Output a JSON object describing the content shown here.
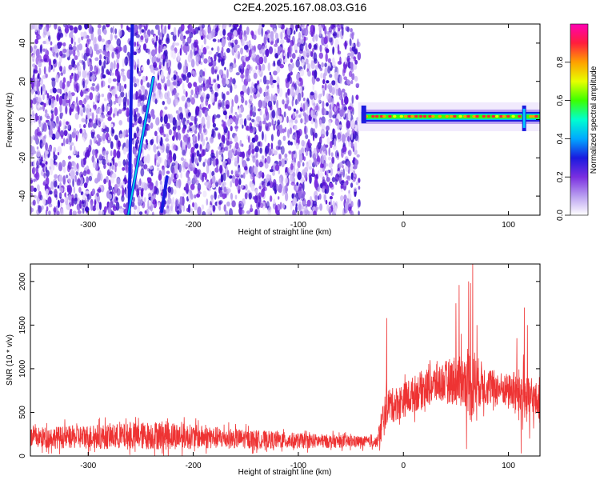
{
  "title": "C2E4.2025.167.08.03.G16",
  "chart_data": [
    {
      "type": "heatmap",
      "xlabel": "Height of straight line (km)",
      "ylabel": "Frequency (Hz)",
      "xlim": [
        -355,
        130
      ],
      "ylim": [
        -50,
        50
      ],
      "xticks": [
        -300,
        -200,
        -100,
        0,
        100
      ],
      "yticks": [
        -40,
        -20,
        0,
        20,
        40
      ],
      "colorbar": {
        "label": "Normalized spectral amplitude",
        "range": [
          0.0,
          1.0
        ],
        "ticks": [
          0.0,
          0.2,
          0.4,
          0.6,
          0.8
        ],
        "colormap": [
          "#ffffff",
          "#b99ef0",
          "#7a2fe0",
          "#1a1adf",
          "#00a8ff",
          "#00ffd0",
          "#3cff00",
          "#e7ff00",
          "#ffa000",
          "#ff1e3c",
          "#ff00b4"
        ]
      },
      "features": [
        {
          "kind": "noise_region",
          "x_range": [
            -355,
            -42
          ],
          "color": "#7a2fe0"
        },
        {
          "kind": "streak",
          "x": [
            -261,
            -258
          ],
          "y": [
            -50,
            50
          ],
          "color": "#1a1adf"
        },
        {
          "kind": "streak",
          "x": [
            -262,
            -238
          ],
          "y": [
            -50,
            22
          ],
          "color": "#00d2e6"
        },
        {
          "kind": "streak",
          "x": [
            -230,
            -225
          ],
          "y": [
            -48,
            -30
          ],
          "color": "#1a1adf"
        },
        {
          "kind": "signal_band",
          "x_range": [
            -40,
            130
          ],
          "y_center": 1.5,
          "peak_color": "#ff1e3c"
        }
      ]
    },
    {
      "type": "line",
      "xlabel": "Height of straight line (km)",
      "ylabel": "SNR (10 * v/v)",
      "xlim": [
        -355,
        130
      ],
      "ylim": [
        0,
        2200
      ],
      "xticks": [
        -300,
        -200,
        -100,
        0,
        100
      ],
      "yticks": [
        0,
        500,
        1000,
        1500,
        2000
      ],
      "series": [
        {
          "color": "#ee3333",
          "envelope": {
            "x": [
              -355,
              -320,
              -300,
              -260,
              -230,
              -200,
              -150,
              -100,
              -50,
              -25,
              -20,
              -15,
              -10,
              0,
              20,
              40,
              50,
              60,
              65,
              70,
              80,
              100,
              110,
              115,
              118,
              125,
              130
            ],
            "mean": [
              210,
              215,
              220,
              225,
              240,
              220,
              195,
              175,
              165,
              160,
              380,
              600,
              580,
              640,
              780,
              860,
              870,
              850,
              840,
              850,
              790,
              760,
              720,
              720,
              650,
              640,
              620
            ],
            "spread": [
              120,
              130,
              140,
              150,
              170,
              140,
              110,
              90,
              70,
              60,
              240,
              200,
              200,
              200,
              220,
              230,
              300,
              300,
              500,
              300,
              220,
              180,
              280,
              300,
              250,
              220,
              200
            ]
          },
          "spikes": [
            {
              "x": -16,
              "y": 1580
            },
            {
              "x": 50,
              "y": 1750
            },
            {
              "x": 53,
              "y": 1960
            },
            {
              "x": 55,
              "y": 1400
            },
            {
              "x": 60,
              "y": 80
            },
            {
              "x": 62,
              "y": 2000
            },
            {
              "x": 64,
              "y": 1980
            },
            {
              "x": 66,
              "y": 2200
            },
            {
              "x": 70,
              "y": 1500
            },
            {
              "x": 108,
              "y": 1350
            },
            {
              "x": 112,
              "y": 30
            },
            {
              "x": 115,
              "y": 1700
            },
            {
              "x": 118,
              "y": 1500
            },
            {
              "x": 120,
              "y": 200
            }
          ]
        }
      ]
    }
  ]
}
